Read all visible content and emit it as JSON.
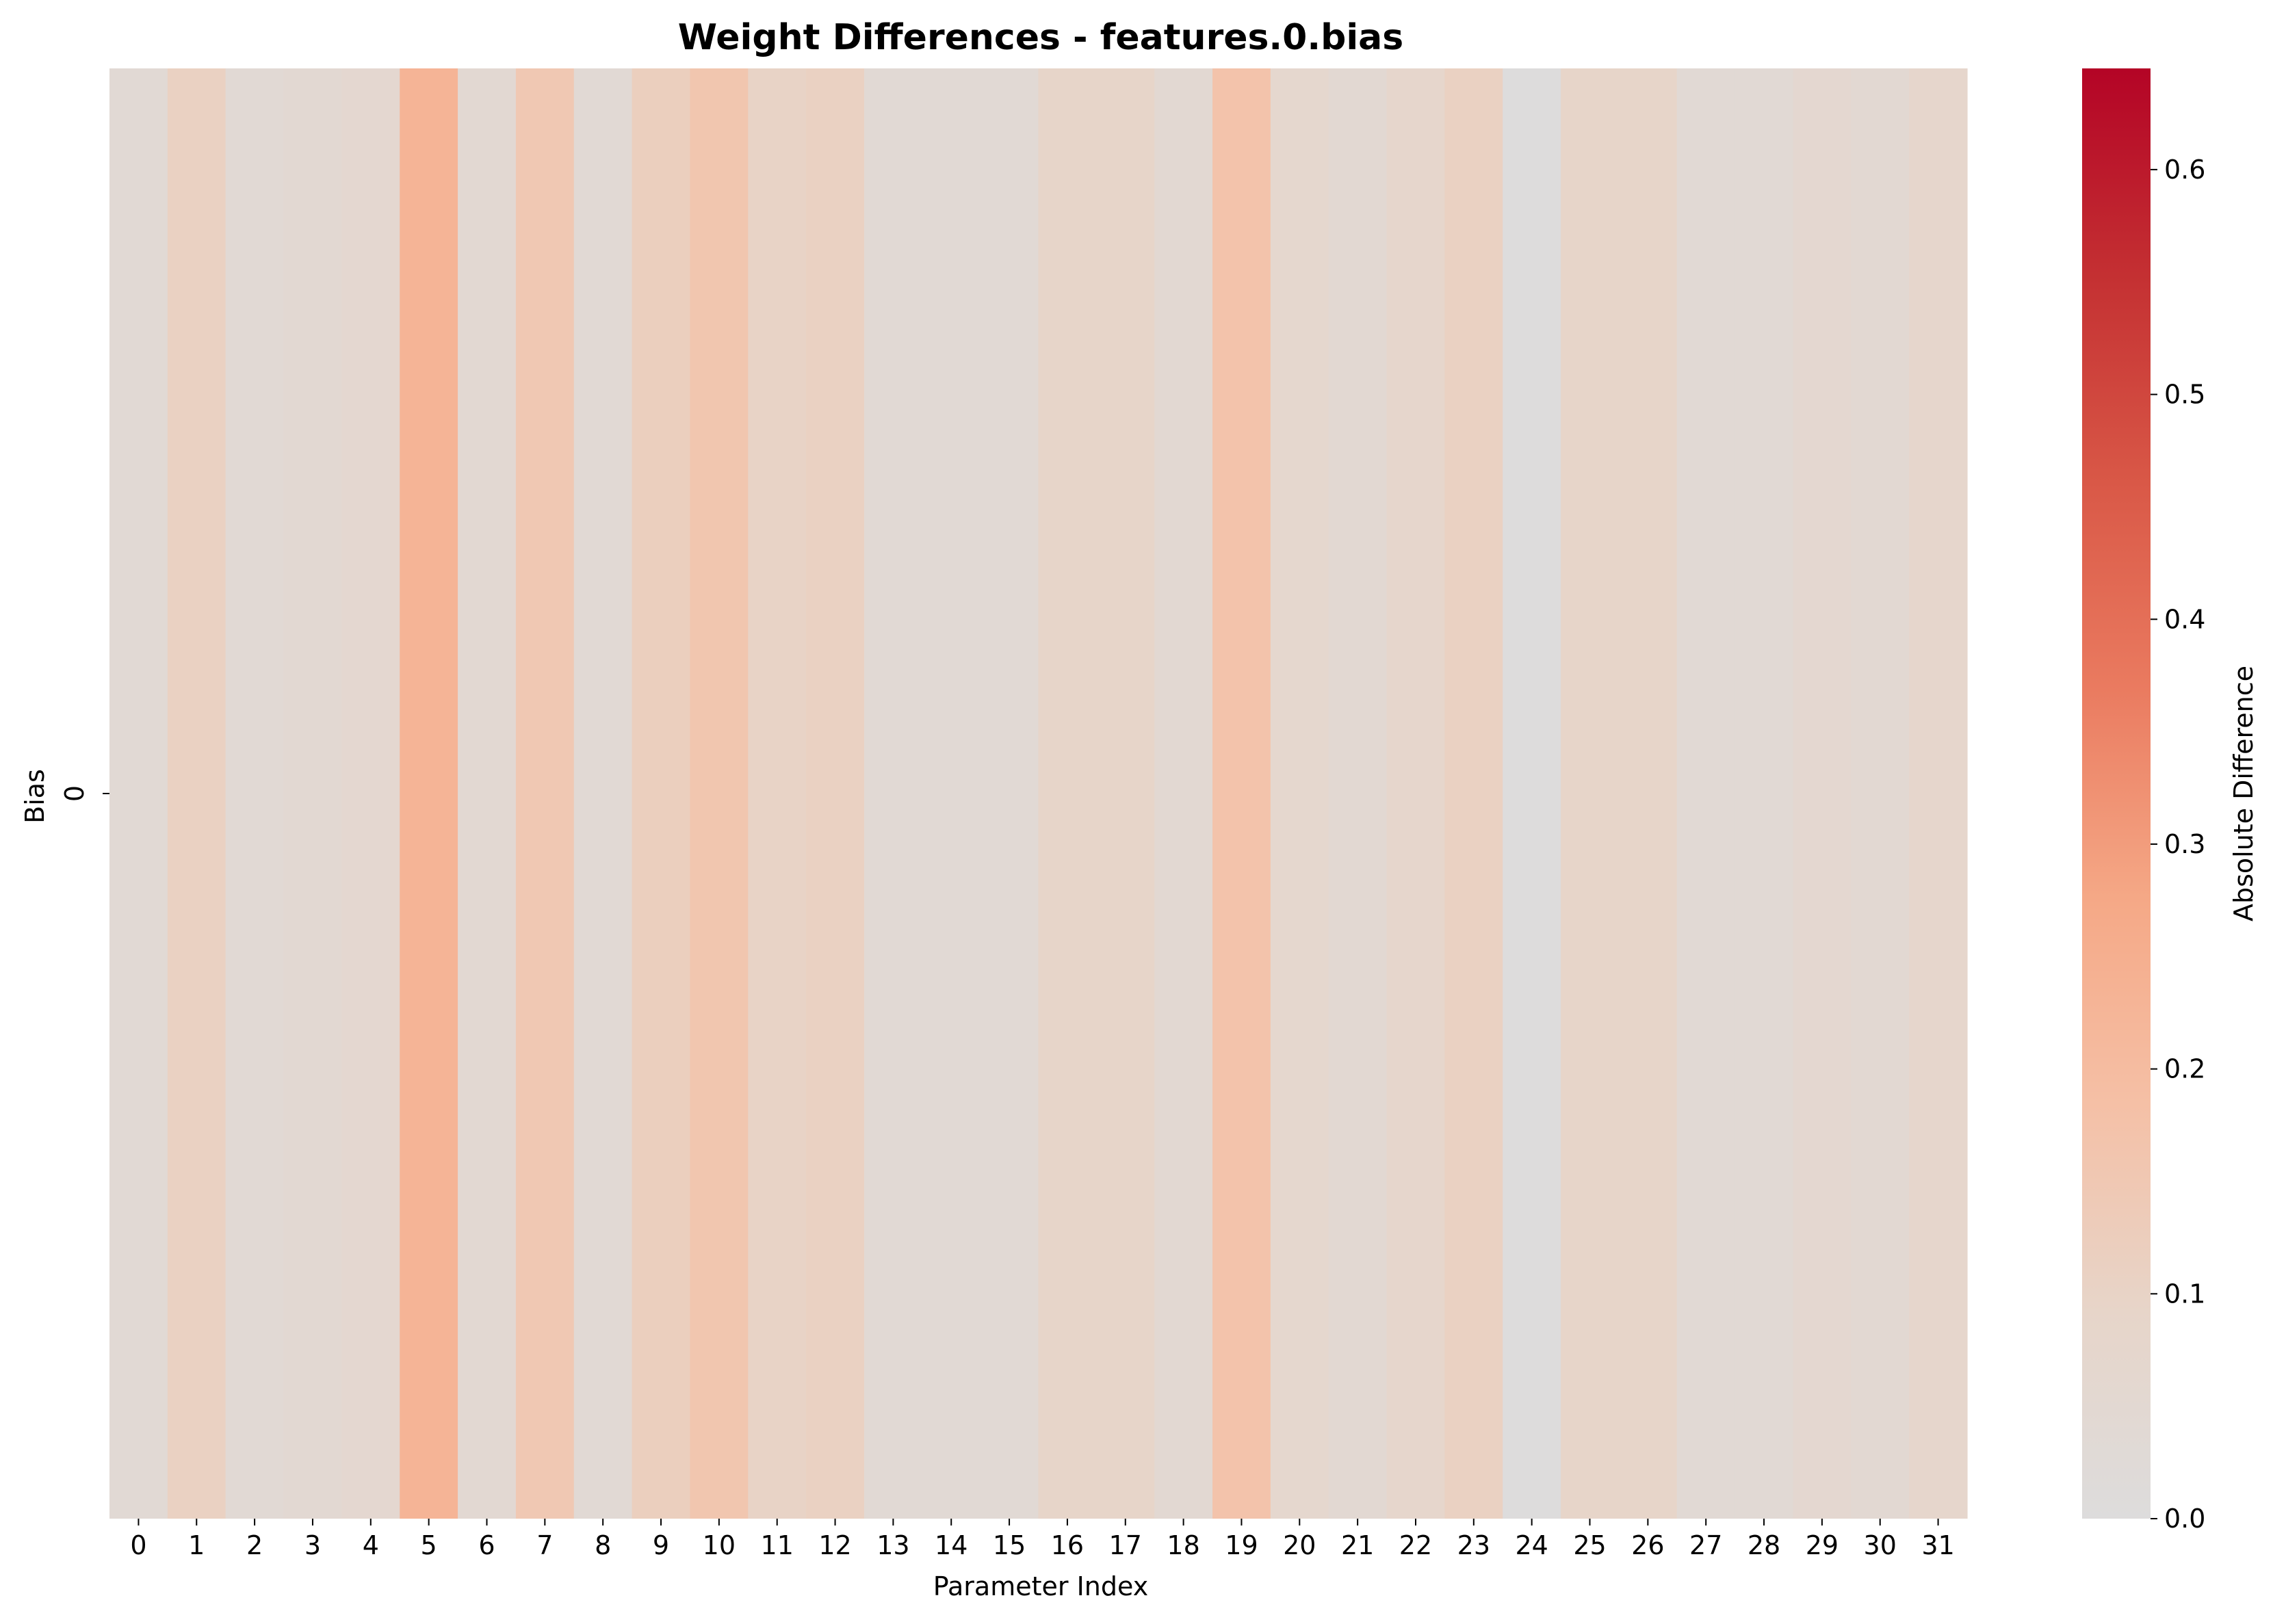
{
  "chart_data": {
    "type": "heatmap",
    "title": "Weight Differences - features.0.bias",
    "xlabel": "Parameter Index",
    "ylabel": "Bias",
    "rows": [
      "0"
    ],
    "columns": [
      "0",
      "1",
      "2",
      "3",
      "4",
      "5",
      "6",
      "7",
      "8",
      "9",
      "10",
      "11",
      "12",
      "13",
      "14",
      "15",
      "16",
      "17",
      "18",
      "19",
      "20",
      "21",
      "22",
      "23",
      "24",
      "25",
      "26",
      "27",
      "28",
      "29",
      "30",
      "31"
    ],
    "values": [
      [
        0.04,
        0.11,
        0.04,
        0.05,
        0.06,
        0.23,
        0.05,
        0.15,
        0.04,
        0.12,
        0.16,
        0.1,
        0.11,
        0.04,
        0.04,
        0.04,
        0.09,
        0.09,
        0.05,
        0.17,
        0.07,
        0.05,
        0.08,
        0.11,
        0.0,
        0.09,
        0.09,
        0.04,
        0.04,
        0.06,
        0.05,
        0.08
      ]
    ],
    "colormap": "coolwarm-centered",
    "colorbar": {
      "label": "Absolute Difference",
      "min": 0.0,
      "max": 0.645,
      "ticks": [
        "0.0",
        "0.1",
        "0.2",
        "0.3",
        "0.4",
        "0.5",
        "0.6"
      ],
      "colors": [
        "#dddcdc",
        "#e7d5c9",
        "#f5c0a6",
        "#f5a886",
        "#ea7b60",
        "#d95847",
        "#c43032",
        "#b40426"
      ]
    }
  }
}
